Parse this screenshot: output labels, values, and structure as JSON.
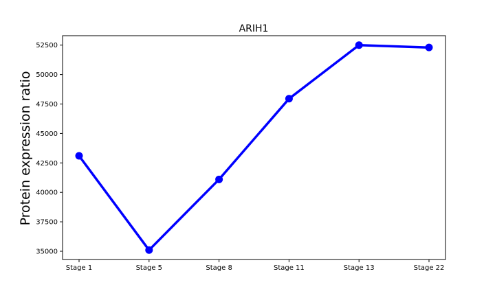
{
  "chart_data": {
    "type": "line",
    "title": "ARIH1",
    "xlabel": "",
    "ylabel": "Protein expression ratio",
    "categories": [
      "Stage 1",
      "Stage 5",
      "Stage 8",
      "Stage 11",
      "Stage 13",
      "Stage 22"
    ],
    "series": [
      {
        "values": [
          43100,
          35100,
          41100,
          47950,
          52500,
          52300
        ]
      }
    ],
    "ylim": [
      34300,
      53300
    ],
    "yticks": [
      35000,
      37500,
      40000,
      42500,
      45000,
      47500,
      50000,
      52500
    ],
    "ytick_labels": [
      "35000",
      "37500",
      "40000",
      "42500",
      "45000",
      "47500",
      "50000",
      "52500"
    ],
    "grid": false,
    "line_color": "#0000ff",
    "marker": "circle"
  }
}
